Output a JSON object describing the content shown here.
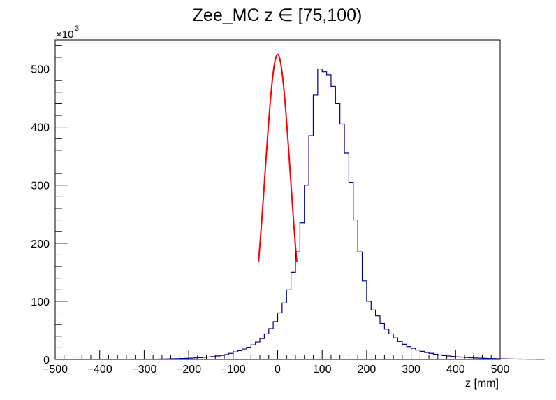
{
  "chart_data": {
    "type": "histogram",
    "title": "Zee_MC z  ∈ [75,100)",
    "xlabel": "z [mm]",
    "ylabel": "",
    "y_multiplier_label": "×10",
    "y_multiplier_exponent": "3",
    "xlim": [
      -500,
      500
    ],
    "ylim": [
      0,
      550
    ],
    "x_ticks": [
      -500,
      -400,
      -300,
      -200,
      -100,
      0,
      100,
      200,
      300,
      400,
      500
    ],
    "x_tick_labels": [
      "−500",
      "−400",
      "−300",
      "−200",
      "−100",
      "0",
      "100",
      "200",
      "300",
      "400",
      "500"
    ],
    "y_ticks": [
      0,
      100,
      200,
      300,
      400,
      500
    ],
    "y_tick_labels": [
      "0",
      "100",
      "200",
      "300",
      "400",
      "500"
    ],
    "bin_width": 10,
    "bin_edges_start": -300,
    "series": [
      {
        "kind": "histogram",
        "color": "#000080",
        "counts": [
          0.3,
          0.4,
          0.5,
          0.6,
          0.8,
          1.0,
          1.2,
          1.4,
          1.7,
          2.0,
          2.3,
          2.7,
          3.2,
          3.7,
          4.3,
          5.0,
          6.0,
          7.0,
          8.5,
          10.5,
          13,
          15,
          18,
          21,
          25,
          30,
          36,
          44,
          53,
          65,
          80,
          97,
          120,
          150,
          185,
          235,
          300,
          385,
          455,
          500,
          495,
          490,
          470,
          440,
          405,
          355,
          305,
          240,
          185,
          135,
          100,
          85,
          75,
          62,
          52,
          44,
          37,
          31,
          26,
          22,
          19,
          16,
          14,
          12,
          10.5,
          9,
          7.8,
          6.8,
          6,
          5.3,
          4.6,
          4.0,
          3.5,
          3.0,
          2.6,
          2.3,
          2.0,
          1.7,
          1.5,
          1.3,
          1.1,
          1.0,
          0.8,
          0.7,
          0.6,
          0.5,
          0.4,
          0.4,
          0.3,
          0.3
        ]
      },
      {
        "kind": "fit",
        "color": "#ff0000",
        "shape": "gaussian",
        "mean": 0,
        "sigma": 28.5,
        "amplitude": 525,
        "range": [
          -43,
          43
        ]
      }
    ],
    "grid": false,
    "legend": "none"
  }
}
